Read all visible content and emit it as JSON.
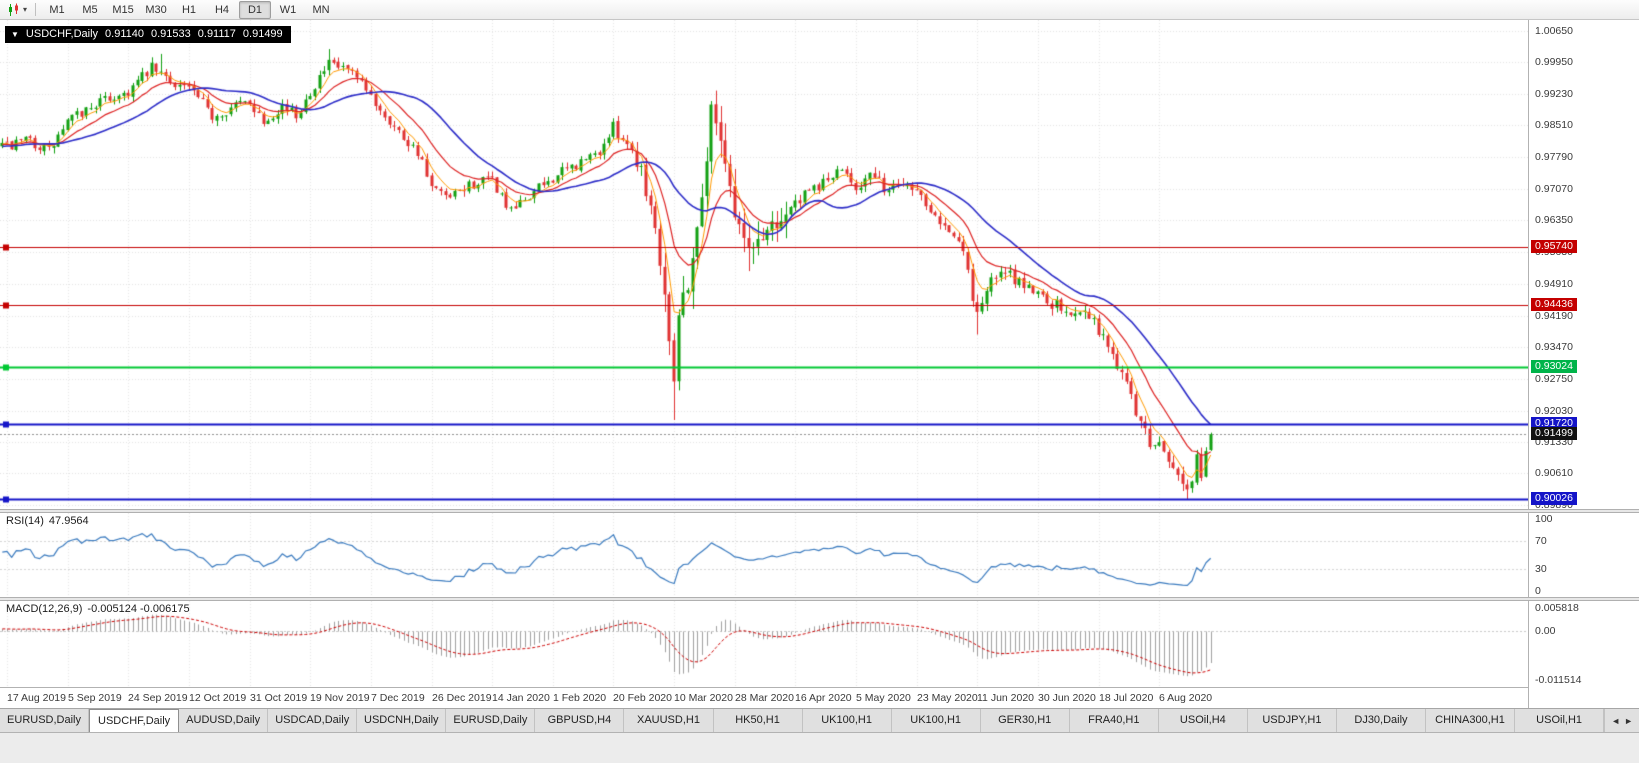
{
  "toolbar": {
    "chart_type_caret": "▾",
    "timeframes": [
      "M1",
      "M5",
      "M15",
      "M30",
      "H1",
      "H4",
      "D1",
      "W1",
      "MN"
    ],
    "active_timeframe": "D1"
  },
  "chart_header": {
    "collapse_caret": "▼",
    "symbol": "USDCHF,Daily",
    "open": "0.91140",
    "high": "0.91533",
    "low": "0.91117",
    "close": "0.91499"
  },
  "price_axis": {
    "labels": [
      "1.00650",
      "0.99950",
      "0.99230",
      "0.98510",
      "0.97790",
      "0.97070",
      "0.96350",
      "0.95630",
      "0.94910",
      "0.94190",
      "0.93470",
      "0.92750",
      "0.92030",
      "0.91330",
      "0.90610",
      "0.89890"
    ],
    "badges": [
      {
        "text": "0.95740",
        "color": "#c40000"
      },
      {
        "text": "0.94436",
        "color": "#c40000"
      },
      {
        "text": "0.93024",
        "color": "#00b44a"
      },
      {
        "text": "0.91720",
        "color": "#1414c8"
      },
      {
        "text": "0.91499",
        "color": "#111111"
      },
      {
        "text": "0.90026",
        "color": "#1414c8"
      }
    ]
  },
  "rsi_pane": {
    "name": "RSI(14)",
    "value": "47.9564",
    "axis": [
      "100",
      "70",
      "30",
      "0"
    ]
  },
  "macd_pane": {
    "name": "MACD(12,26,9)",
    "values": "-0.005124 -0.006175",
    "axis": [
      "0.005818",
      "0.00",
      "-0.011514"
    ]
  },
  "date_axis": {
    "labels": [
      "17 Aug 2019",
      "5 Sep 2019",
      "24 Sep 2019",
      "12 Oct 2019",
      "31 Oct 2019",
      "19 Nov 2019",
      "7 Dec 2019",
      "26 Dec 2019",
      "14 Jan 2020",
      "1 Feb 2020",
      "20 Feb 2020",
      "10 Mar 2020",
      "28 Mar 2020",
      "16 Apr 2020",
      "5 May 2020",
      "23 May 2020",
      "11 Jun 2020",
      "30 Jun 2020",
      "18 Jul 2020",
      "6 Aug 2020"
    ]
  },
  "tabs": {
    "items": [
      "EURUSD,Daily",
      "USDCHF,Daily",
      "AUDUSD,Daily",
      "USDCAD,Daily",
      "USDCNH,Daily",
      "EURUSD,Daily",
      "GBPUSD,H4",
      "XAUUSD,H1",
      "HK50,H1",
      "UK100,H1",
      "UK100,H1",
      "GER30,H1",
      "FRA40,H1",
      "USOil,H4",
      "USDJPY,H1",
      "DJ30,Daily",
      "CHINA300,H1",
      "USOil,H1"
    ],
    "active_index": 1,
    "left_arrow": "◄",
    "right_arrow": "►"
  },
  "chart_data": {
    "type": "candlestick",
    "symbol": "USDCHF",
    "timeframe": "Daily",
    "last_candle": {
      "open": 0.9114,
      "high": 0.91533,
      "low": 0.91117,
      "close": 0.91499
    },
    "current_price": 0.91499,
    "price_range_top": 1.009,
    "price_range_bottom": 0.898,
    "n_visible": 260,
    "warmup": 60,
    "up_color": "#12a012",
    "down_color": "#e03232",
    "anchors": [
      [
        -60,
        0.982
      ],
      [
        -40,
        0.9775
      ],
      [
        -20,
        0.9795
      ],
      [
        -8,
        0.9812
      ],
      [
        0,
        0.98
      ],
      [
        6,
        0.9815
      ],
      [
        10,
        0.9792
      ],
      [
        14,
        0.9858
      ],
      [
        20,
        0.99
      ],
      [
        27,
        0.9928
      ],
      [
        32,
        0.998
      ],
      [
        36,
        0.9952
      ],
      [
        40,
        0.9936
      ],
      [
        45,
        0.9872
      ],
      [
        50,
        0.9896
      ],
      [
        53,
        0.9906
      ],
      [
        56,
        0.9862
      ],
      [
        60,
        0.9896
      ],
      [
        63,
        0.9872
      ],
      [
        66,
        0.993
      ],
      [
        70,
        0.9988
      ],
      [
        74,
        0.9976
      ],
      [
        79,
        0.9916
      ],
      [
        85,
        0.9836
      ],
      [
        89,
        0.9792
      ],
      [
        92,
        0.9706
      ],
      [
        96,
        0.9682
      ],
      [
        100,
        0.9716
      ],
      [
        105,
        0.9726
      ],
      [
        109,
        0.9652
      ],
      [
        113,
        0.9692
      ],
      [
        118,
        0.9732
      ],
      [
        124,
        0.9766
      ],
      [
        128,
        0.9792
      ],
      [
        131,
        0.9846
      ],
      [
        134,
        0.9812
      ],
      [
        137,
        0.9756
      ],
      [
        140,
        0.962
      ],
      [
        142,
        0.9478
      ],
      [
        144,
        0.9292
      ],
      [
        145,
        0.9422
      ],
      [
        147,
        0.9502
      ],
      [
        149,
        0.9612
      ],
      [
        151,
        0.9792
      ],
      [
        152,
        0.9878
      ],
      [
        154,
        0.9842
      ],
      [
        157,
        0.9652
      ],
      [
        160,
        0.9562
      ],
      [
        163,
        0.9602
      ],
      [
        166,
        0.9642
      ],
      [
        170,
        0.9672
      ],
      [
        174,
        0.9706
      ],
      [
        178,
        0.9736
      ],
      [
        181,
        0.9746
      ],
      [
        183,
        0.9712
      ],
      [
        186,
        0.9736
      ],
      [
        190,
        0.9702
      ],
      [
        193,
        0.9726
      ],
      [
        196,
        0.9706
      ],
      [
        200,
        0.9652
      ],
      [
        203,
        0.9616
      ],
      [
        206,
        0.9562
      ],
      [
        208,
        0.9462
      ],
      [
        209,
        0.9426
      ],
      [
        211,
        0.9482
      ],
      [
        214,
        0.9516
      ],
      [
        218,
        0.9496
      ],
      [
        222,
        0.9472
      ],
      [
        226,
        0.9442
      ],
      [
        229,
        0.9416
      ],
      [
        232,
        0.9442
      ],
      [
        235,
        0.9386
      ],
      [
        238,
        0.9332
      ],
      [
        241,
        0.9262
      ],
      [
        243,
        0.9206
      ],
      [
        245,
        0.9152
      ],
      [
        247,
        0.9112
      ],
      [
        248,
        0.9136
      ],
      [
        250,
        0.9086
      ],
      [
        252,
        0.9062
      ],
      [
        254,
        0.9026
      ],
      [
        255,
        0.9042
      ],
      [
        256,
        0.9092
      ],
      [
        257,
        0.9062
      ],
      [
        258,
        0.9106
      ],
      [
        259,
        0.915
      ]
    ],
    "spikes": [
      {
        "i": 34,
        "high": 1.0013
      },
      {
        "i": 70,
        "high": 1.0024
      },
      {
        "i": 144,
        "low": 0.9182
      },
      {
        "i": 152,
        "high": 0.9906
      },
      {
        "i": 160,
        "low": 0.952
      },
      {
        "i": 209,
        "low": 0.9376
      },
      {
        "i": 254,
        "low": 0.9002
      }
    ],
    "volatility": [
      {
        "to": 135,
        "noise": 0.0013,
        "wick": 0.0013
      },
      {
        "to": 141,
        "noise": 0.0022,
        "wick": 0.003
      },
      {
        "to": 168,
        "noise": 0.0034,
        "wick": 0.0042
      },
      {
        "to": 205,
        "noise": 0.0014,
        "wick": 0.0014
      },
      {
        "to": 259,
        "noise": 0.0016,
        "wick": 0.0018
      }
    ],
    "moving_averages": [
      {
        "period": 5,
        "type": "ema",
        "color": "#ff9900",
        "width": 1
      },
      {
        "period": 13,
        "type": "ema",
        "color": "#dd2222",
        "width": 1.2
      },
      {
        "period": 25,
        "type": "sma",
        "color": "#2d2dc8",
        "width": 1.6
      }
    ],
    "hlines": [
      {
        "price": 0.9574,
        "color": "#c40000",
        "width": 1
      },
      {
        "price": 0.94436,
        "color": "#c40000",
        "width": 1
      },
      {
        "price": 0.93024,
        "color": "#00c832",
        "width": 2
      },
      {
        "price": 0.9172,
        "color": "#1414c8",
        "width": 2
      },
      {
        "price": 0.90026,
        "color": "#1414c8",
        "width": 2
      }
    ],
    "current_price_line_color": "#909090",
    "rsi": {
      "period": 14,
      "color": "#3b7bbf",
      "levels": [
        70,
        30
      ],
      "current": 47.9564
    },
    "macd": {
      "fast": 12,
      "slow": 26,
      "signal": 9,
      "hist_color": "#a0a0a0",
      "signal_color": "#cc0000",
      "axis_max": 0.005818,
      "axis_min": -0.011514,
      "current_macd": -0.005124,
      "current_signal": -0.006175
    }
  }
}
